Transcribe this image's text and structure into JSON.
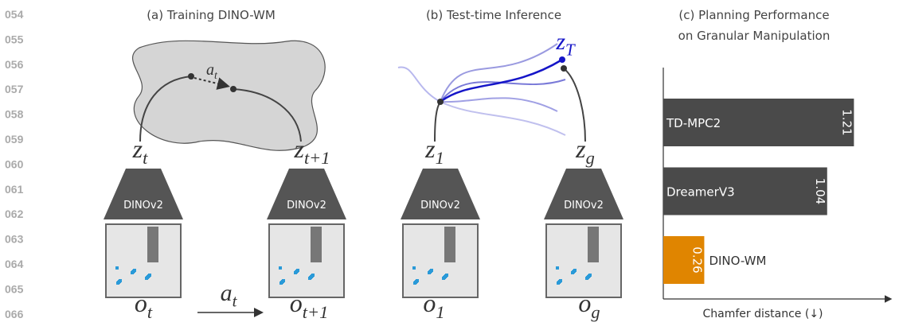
{
  "line_numbers": [
    "054",
    "055",
    "056",
    "057",
    "058",
    "059",
    "060",
    "061",
    "062",
    "063",
    "064",
    "065",
    "066"
  ],
  "panel_a": {
    "title": "(a) Training DINO-WM",
    "action_latent": {
      "base": "a",
      "sub": "t"
    },
    "z_left": {
      "base": "z",
      "sub": "t"
    },
    "z_right": {
      "base": "z",
      "sub": "t+1"
    },
    "encoder_left": "DINOv2",
    "encoder_right": "DINOv2",
    "o_left": {
      "base": "o",
      "sub": "t"
    },
    "o_right": {
      "base": "o",
      "sub": "t+1"
    },
    "action": {
      "base": "a",
      "sub": "t"
    }
  },
  "panel_b": {
    "title": "(b) Test-time Inference",
    "z_target": {
      "base": "z",
      "sub": "T"
    },
    "z_left": {
      "base": "z",
      "sub": "1"
    },
    "z_right": {
      "base": "z",
      "sub": "g"
    },
    "encoder_left": "DINOv2",
    "encoder_right": "DINOv2",
    "o_left": {
      "base": "o",
      "sub": "1"
    },
    "o_right": {
      "base": "o",
      "sub": "g"
    }
  },
  "chart_data": {
    "type": "bar",
    "orientation": "horizontal",
    "title": [
      "(c) Planning Performance",
      "on Granular Manipulation"
    ],
    "x_label": "Chamfer distance (↓)",
    "categories": [
      "TD-MPC2",
      "DreamerV3",
      "DINO-WM"
    ],
    "values": [
      1.21,
      1.04,
      0.26
    ],
    "colors": [
      "#4a4a4a",
      "#4a4a4a",
      "#e08500"
    ],
    "xlim": [
      0,
      1.4
    ]
  }
}
